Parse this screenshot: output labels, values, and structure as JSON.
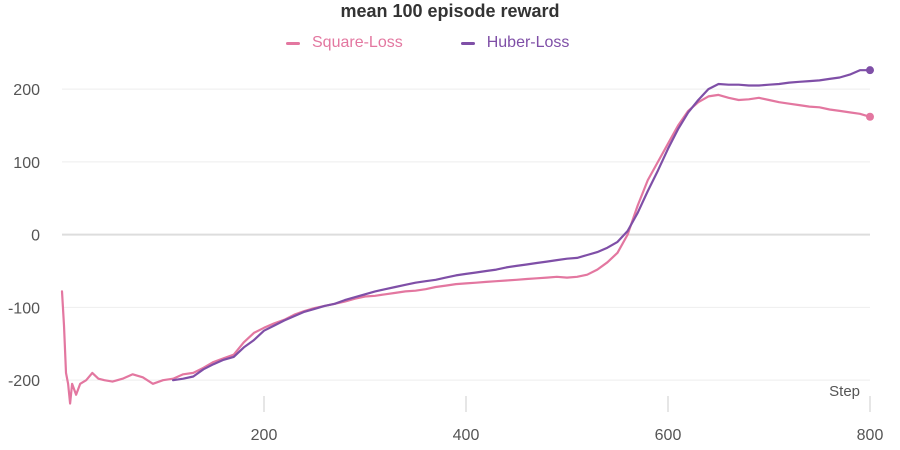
{
  "chart_data": {
    "type": "line",
    "title": "mean 100 episode reward",
    "xlabel": "Step",
    "ylabel": "",
    "xlim": [
      0,
      800
    ],
    "ylim": [
      -230,
      240
    ],
    "x_ticks": [
      200,
      400,
      600,
      800
    ],
    "y_ticks": [
      -200,
      -100,
      0,
      100,
      200
    ],
    "grid": "horizontal",
    "legend_position": "top-center",
    "series": [
      {
        "name": "Square-Loss",
        "color": "#e377a0",
        "points": [
          [
            0,
            -78
          ],
          [
            2,
            -125
          ],
          [
            4,
            -190
          ],
          [
            6,
            -205
          ],
          [
            8,
            -232
          ],
          [
            10,
            -205
          ],
          [
            14,
            -220
          ],
          [
            18,
            -205
          ],
          [
            24,
            -200
          ],
          [
            30,
            -190
          ],
          [
            36,
            -198
          ],
          [
            42,
            -200
          ],
          [
            50,
            -202
          ],
          [
            60,
            -198
          ],
          [
            70,
            -192
          ],
          [
            80,
            -196
          ],
          [
            90,
            -205
          ],
          [
            100,
            -200
          ],
          [
            110,
            -198
          ],
          [
            120,
            -192
          ],
          [
            130,
            -190
          ],
          [
            140,
            -183
          ],
          [
            150,
            -175
          ],
          [
            160,
            -170
          ],
          [
            170,
            -165
          ],
          [
            180,
            -148
          ],
          [
            190,
            -135
          ],
          [
            200,
            -128
          ],
          [
            210,
            -122
          ],
          [
            220,
            -117
          ],
          [
            230,
            -110
          ],
          [
            240,
            -105
          ],
          [
            250,
            -101
          ],
          [
            260,
            -98
          ],
          [
            270,
            -95
          ],
          [
            280,
            -92
          ],
          [
            290,
            -88
          ],
          [
            300,
            -85
          ],
          [
            310,
            -84
          ],
          [
            320,
            -82
          ],
          [
            330,
            -80
          ],
          [
            340,
            -78
          ],
          [
            350,
            -77
          ],
          [
            360,
            -75
          ],
          [
            370,
            -72
          ],
          [
            380,
            -70
          ],
          [
            390,
            -68
          ],
          [
            400,
            -67
          ],
          [
            410,
            -66
          ],
          [
            420,
            -65
          ],
          [
            430,
            -64
          ],
          [
            440,
            -63
          ],
          [
            450,
            -62
          ],
          [
            460,
            -61
          ],
          [
            470,
            -60
          ],
          [
            480,
            -59
          ],
          [
            490,
            -58
          ],
          [
            500,
            -59
          ],
          [
            510,
            -58
          ],
          [
            520,
            -55
          ],
          [
            530,
            -48
          ],
          [
            540,
            -38
          ],
          [
            550,
            -25
          ],
          [
            560,
            0
          ],
          [
            570,
            40
          ],
          [
            580,
            75
          ],
          [
            590,
            100
          ],
          [
            600,
            125
          ],
          [
            610,
            150
          ],
          [
            620,
            170
          ],
          [
            630,
            182
          ],
          [
            640,
            190
          ],
          [
            650,
            192
          ],
          [
            660,
            188
          ],
          [
            670,
            185
          ],
          [
            680,
            186
          ],
          [
            690,
            188
          ],
          [
            700,
            185
          ],
          [
            710,
            182
          ],
          [
            720,
            180
          ],
          [
            730,
            178
          ],
          [
            740,
            176
          ],
          [
            750,
            175
          ],
          [
            760,
            172
          ],
          [
            770,
            170
          ],
          [
            780,
            168
          ],
          [
            790,
            166
          ],
          [
            800,
            162
          ]
        ]
      },
      {
        "name": "Huber-Loss",
        "color": "#7f4fa7",
        "points": [
          [
            110,
            -200
          ],
          [
            120,
            -198
          ],
          [
            130,
            -195
          ],
          [
            140,
            -185
          ],
          [
            150,
            -178
          ],
          [
            160,
            -172
          ],
          [
            170,
            -168
          ],
          [
            180,
            -155
          ],
          [
            190,
            -145
          ],
          [
            200,
            -132
          ],
          [
            210,
            -125
          ],
          [
            220,
            -118
          ],
          [
            230,
            -112
          ],
          [
            240,
            -106
          ],
          [
            250,
            -102
          ],
          [
            260,
            -98
          ],
          [
            270,
            -95
          ],
          [
            280,
            -90
          ],
          [
            290,
            -86
          ],
          [
            300,
            -82
          ],
          [
            310,
            -78
          ],
          [
            320,
            -75
          ],
          [
            330,
            -72
          ],
          [
            340,
            -69
          ],
          [
            350,
            -66
          ],
          [
            360,
            -64
          ],
          [
            370,
            -62
          ],
          [
            380,
            -59
          ],
          [
            390,
            -56
          ],
          [
            400,
            -54
          ],
          [
            410,
            -52
          ],
          [
            420,
            -50
          ],
          [
            430,
            -48
          ],
          [
            440,
            -45
          ],
          [
            450,
            -43
          ],
          [
            460,
            -41
          ],
          [
            470,
            -39
          ],
          [
            480,
            -37
          ],
          [
            490,
            -35
          ],
          [
            500,
            -33
          ],
          [
            510,
            -32
          ],
          [
            520,
            -28
          ],
          [
            530,
            -24
          ],
          [
            540,
            -18
          ],
          [
            550,
            -10
          ],
          [
            560,
            5
          ],
          [
            570,
            30
          ],
          [
            580,
            60
          ],
          [
            590,
            88
          ],
          [
            600,
            118
          ],
          [
            610,
            145
          ],
          [
            620,
            168
          ],
          [
            630,
            185
          ],
          [
            640,
            200
          ],
          [
            650,
            207
          ],
          [
            660,
            206
          ],
          [
            670,
            206
          ],
          [
            680,
            205
          ],
          [
            690,
            205
          ],
          [
            700,
            206
          ],
          [
            710,
            207
          ],
          [
            720,
            209
          ],
          [
            730,
            210
          ],
          [
            740,
            211
          ],
          [
            750,
            212
          ],
          [
            760,
            214
          ],
          [
            770,
            216
          ],
          [
            780,
            220
          ],
          [
            790,
            226
          ],
          [
            800,
            226
          ]
        ]
      }
    ]
  }
}
